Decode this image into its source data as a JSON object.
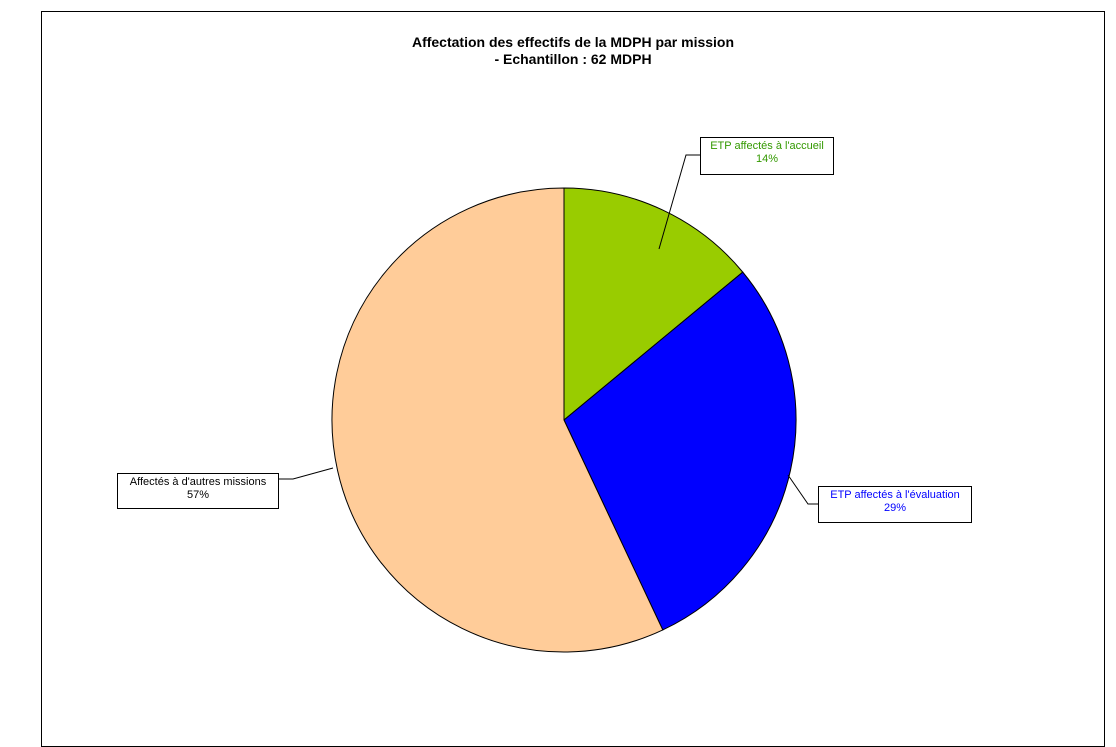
{
  "chart_data": {
    "type": "pie",
    "title": "Affectation des effectifs de la MDPH par mission",
    "subtitle": "- Echantillon : 62 MDPH",
    "slices": [
      {
        "label": "ETP affectés à l'accueil",
        "value": 14,
        "display": "14%",
        "color": "#99CC00",
        "label_color": "#339900"
      },
      {
        "label": "ETP affectés à l'évaluation",
        "value": 29,
        "display": "29%",
        "color": "#0000FF",
        "label_color": "#0000FF"
      },
      {
        "label": "Affectés à d'autres missions",
        "value": 57,
        "display": "57%",
        "color": "#FFCC99",
        "label_color": "#000000"
      }
    ],
    "start": "12 o'clock",
    "direction": "clockwise",
    "legend": "none"
  }
}
